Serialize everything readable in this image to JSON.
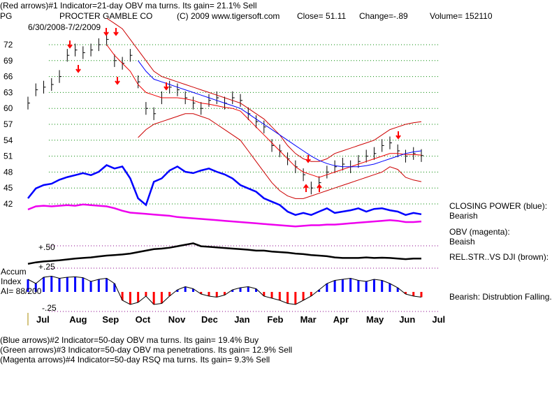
{
  "header": {
    "line1": "(Red arrows)#1 Indicator=21-day OBV ma turns. Its gain= 21.1% Sell",
    "ticker": "PG",
    "company": "PROCTER GAMBLE CO",
    "copyright": "(C) 2009 www.tigersoft.com",
    "close": "Close=  51.11",
    "change": "Change=-.89",
    "volume": "Volume= 152110",
    "range": "6/30/2008-7/2/2009"
  },
  "side": {
    "cp": "CLOSING POWER (blue):",
    "cp_val": "Bearish",
    "obv": "OBV (magenta):",
    "obv_val": "Beaish",
    "rs": "REL.STR..VS DJI (brown):",
    "ai_status": "Bearish: Distrubtion Falling."
  },
  "ai": {
    "l1": "Accum",
    "l2": "Index",
    "l3": "AI= 88/200",
    "p50": "+.50",
    "p25": "+.25",
    "m25": "-.25"
  },
  "footer": [
    "(Blue arrows)#2 Indicator=50-day OBV ma turns. Its gain= 19.4% Buy",
    "(Green arrows)#3 Indicator=50-day OBV ma penetrations. Its gain= 12.9% Sell",
    "(Magenta arrows)#4 Indicator=50-day RSQ ma turns. Its gain= 9.3% Sell"
  ],
  "chart_data": {
    "type": "line",
    "title": "PROCTER GAMBLE CO (PG)",
    "x_labels": [
      "Jul",
      "Aug",
      "Sep",
      "Oct",
      "Nov",
      "Dec",
      "Jan",
      "Feb",
      "Mar",
      "Apr",
      "May",
      "Jun",
      "Jul"
    ],
    "y_ticks": [
      72,
      69,
      66,
      63,
      60,
      57,
      54,
      51,
      48,
      45,
      42
    ],
    "ylim": [
      42,
      72
    ],
    "price": [
      61,
      63.5,
      64,
      64.5,
      66,
      70,
      71,
      70.5,
      71,
      72,
      73,
      69,
      68.5,
      70,
      65,
      60,
      59,
      62,
      64,
      63.5,
      62,
      61,
      60,
      61.5,
      62,
      61,
      62,
      61.5,
      59,
      57.5,
      56.5,
      53,
      52,
      50.5,
      49,
      47.5,
      45,
      46,
      48,
      49,
      49.5,
      49,
      50,
      51,
      51.5,
      53,
      53.5,
      52,
      51,
      51.5,
      51.11
    ],
    "upper_band": [
      null,
      null,
      null,
      null,
      null,
      null,
      null,
      null,
      null,
      null,
      77,
      76,
      75,
      73,
      71,
      69,
      67,
      66,
      65.5,
      65,
      64.5,
      64,
      63.5,
      63,
      62.5,
      62,
      61.5,
      61,
      60,
      59,
      58,
      56.5,
      55,
      53,
      51.5,
      50.5,
      50,
      50,
      50.5,
      51.5,
      52,
      52.5,
      53,
      53.5,
      54,
      55,
      56,
      56.5,
      57,
      57.3,
      57.5
    ],
    "lower_band": [
      null,
      null,
      null,
      null,
      null,
      null,
      null,
      null,
      null,
      null,
      null,
      null,
      null,
      null,
      54.5,
      56,
      57,
      57.5,
      58,
      58.5,
      59,
      59,
      58.5,
      58,
      57,
      56,
      55,
      54,
      52,
      50,
      48,
      46,
      44.5,
      43.5,
      43,
      43,
      43.5,
      44,
      44.5,
      45,
      45.5,
      46,
      46.5,
      47,
      47.5,
      48,
      49,
      48.5,
      47,
      46.5,
      46.2
    ],
    "ma_red": [
      null,
      null,
      null,
      null,
      null,
      null,
      null,
      null,
      null,
      null,
      72,
      70,
      68.5,
      67,
      64.5,
      63,
      62.5,
      62,
      62,
      62,
      61.8,
      61.5,
      61,
      60.8,
      60.5,
      60.2,
      60,
      59.5,
      58,
      56.5,
      55,
      53.5,
      52,
      50.5,
      49,
      48,
      47.5,
      47,
      47.5,
      48,
      48.5,
      49,
      49.5,
      50,
      50.5,
      51,
      51.5,
      51.5,
      51.3,
      51.3,
      51.2
    ],
    "ma_blue": [
      null,
      null,
      null,
      null,
      null,
      null,
      null,
      null,
      null,
      null,
      null,
      null,
      null,
      null,
      69,
      67,
      65.5,
      65,
      64.5,
      64,
      63.5,
      63,
      62.5,
      62,
      61.5,
      61,
      60.5,
      60,
      59,
      58,
      57,
      56,
      55,
      54,
      53,
      52,
      51,
      50.2,
      49.6,
      49.2,
      49,
      49,
      49,
      49.2,
      49.5,
      50,
      50.5,
      51,
      51.5,
      51.8,
      52
    ],
    "closing_power": [
      40,
      55,
      60,
      62,
      68,
      72,
      75,
      78,
      75,
      80,
      90,
      85,
      88,
      70,
      40,
      30,
      65,
      70,
      82,
      88,
      80,
      78,
      82,
      85,
      80,
      76,
      70,
      60,
      55,
      50,
      40,
      35,
      30,
      20,
      15,
      18,
      15,
      20,
      25,
      18,
      20,
      22,
      25,
      20,
      24,
      25,
      22,
      20,
      15,
      18,
      16
    ],
    "obv": [
      50,
      55,
      56,
      55,
      56,
      57,
      56,
      58,
      57,
      56,
      55,
      52,
      48,
      45,
      44,
      43,
      42,
      41,
      40,
      38,
      37,
      36,
      35,
      34,
      33,
      32,
      31,
      30,
      29,
      28,
      27,
      26,
      25,
      24,
      23,
      24,
      25,
      25,
      26,
      26,
      27,
      28,
      29,
      30,
      31,
      32,
      33,
      32,
      30,
      30,
      31
    ],
    "rel_strength": [
      10,
      15,
      18,
      20,
      22,
      25,
      28,
      30,
      32,
      35,
      38,
      40,
      42,
      45,
      50,
      55,
      60,
      62,
      65,
      70,
      75,
      80,
      70,
      68,
      66,
      64,
      62,
      60,
      58,
      55,
      55,
      52,
      50,
      48,
      45,
      43,
      40,
      38,
      36,
      32,
      30,
      30,
      30,
      32,
      30,
      31,
      30,
      28,
      26,
      28,
      28
    ],
    "accum_index": [
      60,
      40,
      70,
      75,
      65,
      70,
      72,
      68,
      50,
      60,
      65,
      40,
      -40,
      -60,
      -50,
      -20,
      -60,
      -55,
      -20,
      10,
      25,
      15,
      -10,
      -20,
      -25,
      -15,
      10,
      20,
      25,
      15,
      -20,
      -30,
      -40,
      -55,
      -60,
      -40,
      -20,
      10,
      40,
      55,
      60,
      65,
      55,
      50,
      60,
      55,
      40,
      20,
      -10,
      -20,
      -25
    ]
  }
}
